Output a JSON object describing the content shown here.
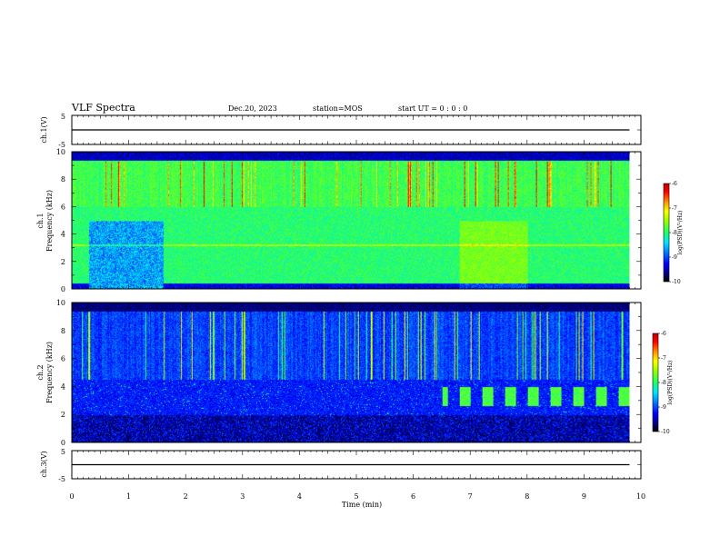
{
  "header": {
    "title": "VLF Spectra",
    "date": "Dec.20, 2023",
    "station": "station=MOS",
    "start": "start  UT =   0 : 0  : 0"
  },
  "colors": {
    "colormap": [
      "#000000",
      "#00006a",
      "#0000ff",
      "#0090ff",
      "#00e8ff",
      "#22ff66",
      "#a0ff00",
      "#ffff00",
      "#ff8c00",
      "#ff0000",
      "#c80000",
      "#ffffff"
    ]
  },
  "chart_data": [
    {
      "type": "line",
      "ylabel": "ch.1(V)",
      "ylim": [
        -5,
        5
      ],
      "y_ticks": [
        "5",
        "-5"
      ],
      "baseline": 0,
      "x": [
        0,
        9.8
      ],
      "values": [
        0,
        0
      ]
    },
    {
      "type": "heatmap",
      "ylabel": "ch.1\nFrequency (kHz)",
      "xlim": [
        0,
        10
      ],
      "ylim": [
        0,
        10
      ],
      "y_ticks": [
        "0",
        "2",
        "4",
        "6",
        "8",
        "10"
      ],
      "data_xmax": 9.8,
      "color_scale": {
        "label": "log(PSD)(V²/Hz)",
        "range": [
          -10,
          -6
        ],
        "ticks": [
          "-6",
          "-7",
          "-8",
          "-9",
          "-10"
        ]
      },
      "features": {
        "background_level": -8.0,
        "horizontal_line_khz": 3.2,
        "quiet_interval_min": [
          0.3,
          1.6
        ],
        "enhanced_interval_min": [
          6.8,
          8.0
        ]
      }
    },
    {
      "type": "heatmap",
      "ylabel": "ch.2\nFrequency (kHz)",
      "xlim": [
        0,
        10
      ],
      "ylim": [
        0,
        10
      ],
      "y_ticks": [
        "0",
        "2",
        "4",
        "6",
        "8",
        "10"
      ],
      "data_xmax": 9.8,
      "color_scale": {
        "label": "log(PSD)(V²/Hz)",
        "range": [
          -10,
          -6
        ],
        "ticks": [
          "-6",
          "-7",
          "-8",
          "-9",
          "-10"
        ]
      },
      "features": {
        "background_level": -9.2,
        "periodic_band_start_min": 6.5,
        "periodic_band_khz": [
          2.6,
          4.0
        ]
      }
    },
    {
      "type": "line",
      "ylabel": "ch.3(V)",
      "ylim": [
        -5,
        5
      ],
      "y_ticks": [
        "5",
        "-5"
      ],
      "baseline": 0,
      "x": [
        0,
        9.8
      ],
      "values": [
        0,
        0
      ]
    }
  ],
  "xaxis": {
    "label": "Time (min)",
    "range": [
      0,
      10
    ],
    "ticks": [
      "0",
      "1",
      "2",
      "3",
      "4",
      "5",
      "6",
      "7",
      "8",
      "9",
      "10"
    ]
  }
}
